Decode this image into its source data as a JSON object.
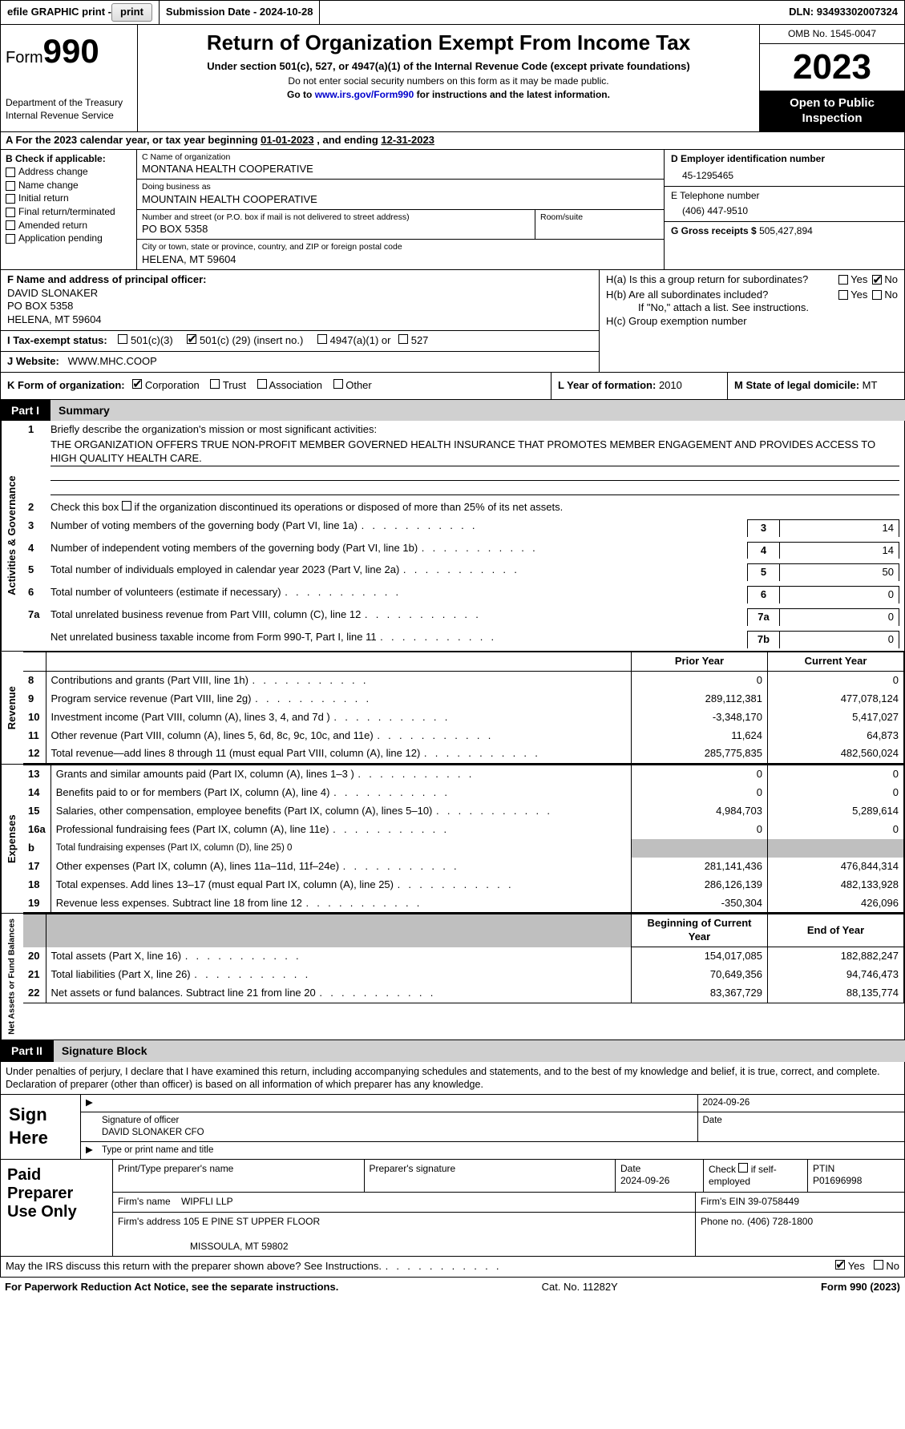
{
  "topbar": {
    "efile": "efile GRAPHIC print - ",
    "submission": "Submission Date - 2024-10-28",
    "dln_label": "DLN:",
    "dln": "93493302007324"
  },
  "header": {
    "form_word": "Form",
    "form_num": "990",
    "dept": "Department of the Treasury\nInternal Revenue Service",
    "title": "Return of Organization Exempt From Income Tax",
    "sub": "Under section 501(c), 527, or 4947(a)(1) of the Internal Revenue Code (except private foundations)",
    "warn": "Do not enter social security numbers on this form as it may be made public.",
    "goto_pre": "Go to ",
    "goto_link": "www.irs.gov/Form990",
    "goto_post": " for instructions and the latest information.",
    "omb": "OMB No. 1545-0047",
    "year": "2023",
    "inspect": "Open to Public Inspection"
  },
  "rowA": {
    "pre": "A  For the 2023 calendar year, or tax year beginning ",
    "begin": "01-01-2023",
    "mid": "   , and ending ",
    "end": "12-31-2023"
  },
  "colB": {
    "hdr": "B Check if applicable:",
    "items": [
      "Address change",
      "Name change",
      "Initial return",
      "Final return/terminated",
      "Amended return",
      "Application pending"
    ]
  },
  "colC": {
    "name_lbl": "C Name of organization",
    "name": "MONTANA HEALTH COOPERATIVE",
    "dba_lbl": "Doing business as",
    "dba": "MOUNTAIN HEALTH COOPERATIVE",
    "street_lbl": "Number and street (or P.O. box if mail is not delivered to street address)",
    "street": "PO BOX 5358",
    "room_lbl": "Room/suite",
    "room": "",
    "city_lbl": "City or town, state or province, country, and ZIP or foreign postal code",
    "city": "HELENA, MT  59604"
  },
  "colD": {
    "ein_lbl": "D Employer identification number",
    "ein": "45-1295465",
    "tel_lbl": "E Telephone number",
    "tel": "(406) 447-9510",
    "gross_lbl": "G Gross receipts $",
    "gross": "505,427,894"
  },
  "rowF": {
    "lbl": "F  Name and address of principal officer:",
    "name": "DAVID SLONAKER",
    "street": "PO BOX 5358",
    "city": "HELENA, MT  59604"
  },
  "rowI": {
    "lbl": "I   Tax-exempt status:",
    "opt1": "501(c)(3)",
    "opt2_pre": "501(c) (",
    "opt2_num": "29",
    "opt2_post": ") (insert no.)",
    "opt3": "4947(a)(1) or",
    "opt4": "527"
  },
  "rowJ": {
    "lbl": "J   Website:",
    "val": "WWW.MHC.COOP"
  },
  "rowH": {
    "a_lbl": "H(a)  Is this a group return for subordinates?",
    "b_lbl": "H(b)  Are all subordinates included?",
    "b_note": "If \"No,\" attach a list. See instructions.",
    "c_lbl": "H(c)  Group exemption number ",
    "yes": "Yes",
    "no": "No"
  },
  "rowK": {
    "lbl": "K Form of organization:",
    "opts": [
      "Corporation",
      "Trust",
      "Association",
      "Other"
    ],
    "checked": 0
  },
  "rowL": {
    "lbl": "L Year of formation:",
    "val": "2010"
  },
  "rowM": {
    "lbl": "M State of legal domicile:",
    "val": "MT"
  },
  "part1": {
    "tag": "Part I",
    "title": "Summary",
    "side_a": "Activities & Governance",
    "side_r": "Revenue",
    "side_e": "Expenses",
    "side_n": "Net Assets or Fund Balances",
    "l1_lbl": "Briefly describe the organization's mission or most significant activities:",
    "l1_val": "THE ORGANIZATION OFFERS TRUE NON-PROFIT MEMBER GOVERNED HEALTH INSURANCE THAT PROMOTES MEMBER ENGAGEMENT AND PROVIDES ACCESS TO HIGH QUALITY HEALTH CARE.",
    "l2": "Check this box         if the organization discontinued its operations or disposed of more than 25% of its net assets.",
    "rows_gov": [
      {
        "n": "3",
        "t": "Number of voting members of the governing body (Part VI, line 1a)",
        "k": "3",
        "v": "14"
      },
      {
        "n": "4",
        "t": "Number of independent voting members of the governing body (Part VI, line 1b)",
        "k": "4",
        "v": "14"
      },
      {
        "n": "5",
        "t": "Total number of individuals employed in calendar year 2023 (Part V, line 2a)",
        "k": "5",
        "v": "50"
      },
      {
        "n": "6",
        "t": "Total number of volunteers (estimate if necessary)",
        "k": "6",
        "v": "0"
      },
      {
        "n": "7a",
        "t": "Total unrelated business revenue from Part VIII, column (C), line 12",
        "k": "7a",
        "v": "0"
      },
      {
        "n": "",
        "t": "Net unrelated business taxable income from Form 990-T, Part I, line 11",
        "k": "7b",
        "v": "0"
      }
    ],
    "col_prior": "Prior Year",
    "col_curr": "Current Year",
    "rev": [
      {
        "n": "8",
        "t": "Contributions and grants (Part VIII, line 1h)",
        "p": "0",
        "c": "0"
      },
      {
        "n": "9",
        "t": "Program service revenue (Part VIII, line 2g)",
        "p": "289,112,381",
        "c": "477,078,124"
      },
      {
        "n": "10",
        "t": "Investment income (Part VIII, column (A), lines 3, 4, and 7d )",
        "p": "-3,348,170",
        "c": "5,417,027"
      },
      {
        "n": "11",
        "t": "Other revenue (Part VIII, column (A), lines 5, 6d, 8c, 9c, 10c, and 11e)",
        "p": "11,624",
        "c": "64,873"
      },
      {
        "n": "12",
        "t": "Total revenue—add lines 8 through 11 (must equal Part VIII, column (A), line 12)",
        "p": "285,775,835",
        "c": "482,560,024"
      }
    ],
    "exp": [
      {
        "n": "13",
        "t": "Grants and similar amounts paid (Part IX, column (A), lines 1–3 )",
        "p": "0",
        "c": "0"
      },
      {
        "n": "14",
        "t": "Benefits paid to or for members (Part IX, column (A), line 4)",
        "p": "0",
        "c": "0"
      },
      {
        "n": "15",
        "t": "Salaries, other compensation, employee benefits (Part IX, column (A), lines 5–10)",
        "p": "4,984,703",
        "c": "5,289,614"
      },
      {
        "n": "16a",
        "t": "Professional fundraising fees (Part IX, column (A), line 11e)",
        "p": "0",
        "c": "0"
      },
      {
        "n": "b",
        "t": "Total fundraising expenses (Part IX, column (D), line 25) 0",
        "p": "",
        "c": "",
        "shade": true
      },
      {
        "n": "17",
        "t": "Other expenses (Part IX, column (A), lines 11a–11d, 11f–24e)",
        "p": "281,141,436",
        "c": "476,844,314"
      },
      {
        "n": "18",
        "t": "Total expenses. Add lines 13–17 (must equal Part IX, column (A), line 25)",
        "p": "286,126,139",
        "c": "482,133,928"
      },
      {
        "n": "19",
        "t": "Revenue less expenses. Subtract line 18 from line 12",
        "p": "-350,304",
        "c": "426,096"
      }
    ],
    "col_begin": "Beginning of Current Year",
    "col_end": "End of Year",
    "net": [
      {
        "n": "20",
        "t": "Total assets (Part X, line 16)",
        "p": "154,017,085",
        "c": "182,882,247"
      },
      {
        "n": "21",
        "t": "Total liabilities (Part X, line 26)",
        "p": "70,649,356",
        "c": "94,746,473"
      },
      {
        "n": "22",
        "t": "Net assets or fund balances. Subtract line 21 from line 20",
        "p": "83,367,729",
        "c": "88,135,774"
      }
    ]
  },
  "part2": {
    "tag": "Part II",
    "title": "Signature Block",
    "intro": "Under penalties of perjury, I declare that I have examined this return, including accompanying schedules and statements, and to the best of my knowledge and belief, it is true, correct, and complete. Declaration of preparer (other than officer) is based on all information of which preparer has any knowledge.",
    "sign_here": "Sign Here",
    "sig_date": "2024-09-26",
    "sig_off_lbl": "Signature of officer",
    "sig_name": "DAVID SLONAKER CFO",
    "sig_type_lbl": "Type or print name and title"
  },
  "prep": {
    "hdr": "Paid Preparer Use Only",
    "r1": {
      "name_lbl": "Print/Type preparer's name",
      "sig_lbl": "Preparer's signature",
      "date_lbl": "Date",
      "date": "2024-09-26",
      "check_lbl": "Check        if self-employed",
      "ptin_lbl": "PTIN",
      "ptin": "P01696998"
    },
    "r2": {
      "firm_lbl": "Firm's name  ",
      "firm": "WIPFLI LLP",
      "ein_lbl": "Firm's EIN  ",
      "ein": "39-0758449"
    },
    "r3": {
      "addr_lbl": "Firm's address ",
      "addr1": "105 E PINE ST UPPER FLOOR",
      "addr2": "MISSOULA, MT  59802",
      "phone_lbl": "Phone no.",
      "phone": "(406) 728-1800"
    }
  },
  "footer": {
    "q": "May the IRS discuss this return with the preparer shown above? See Instructions.",
    "yes": "Yes",
    "no": "No",
    "pra": "For Paperwork Reduction Act Notice, see the separate instructions.",
    "cat": "Cat. No. 11282Y",
    "form": "Form 990 (2023)"
  }
}
